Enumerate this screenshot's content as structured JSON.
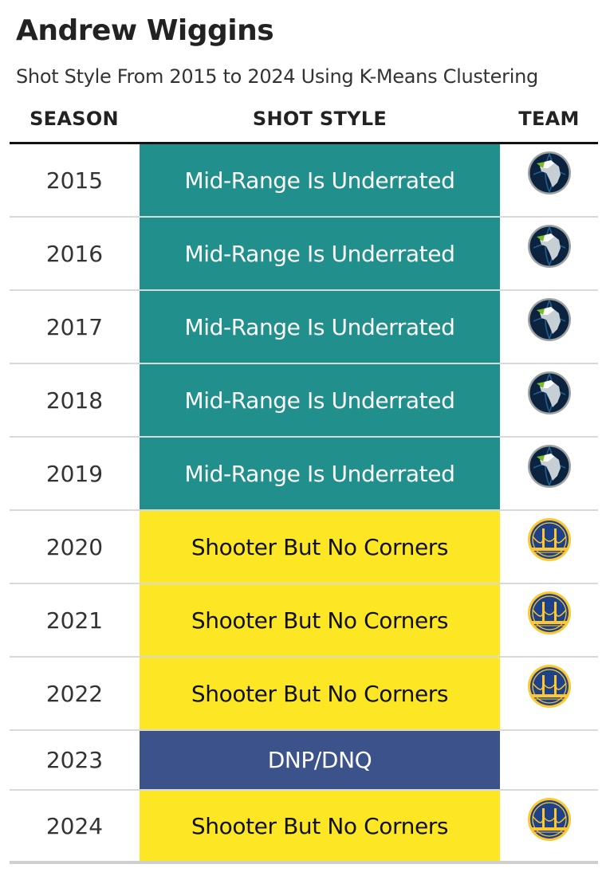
{
  "title": "Andrew Wiggins",
  "subtitle": "Shot Style From 2015 to 2024 Using K-Means Clustering",
  "columns": {
    "season": "SEASON",
    "style": "SHOT STYLE",
    "team": "TEAM"
  },
  "colors": {
    "Mid-Range Is Underrated": {
      "bg": "#21908d",
      "fg": "#ffffff"
    },
    "Shooter But No Corners": {
      "bg": "#fde725",
      "fg": "#111111"
    },
    "DNP/DNQ": {
      "bg": "#3b528b",
      "fg": "#ffffff"
    }
  },
  "chart_data": {
    "type": "table",
    "title": "Andrew Wiggins",
    "subtitle": "Shot Style From 2015 to 2024 Using K-Means Clustering",
    "rows": [
      {
        "season": "2015",
        "style": "Mid-Range Is Underrated",
        "team": "timberwolves-logo"
      },
      {
        "season": "2016",
        "style": "Mid-Range Is Underrated",
        "team": "timberwolves-logo"
      },
      {
        "season": "2017",
        "style": "Mid-Range Is Underrated",
        "team": "timberwolves-logo"
      },
      {
        "season": "2018",
        "style": "Mid-Range Is Underrated",
        "team": "timberwolves-logo"
      },
      {
        "season": "2019",
        "style": "Mid-Range Is Underrated",
        "team": "timberwolves-logo"
      },
      {
        "season": "2020",
        "style": "Shooter But No Corners",
        "team": "warriors-logo"
      },
      {
        "season": "2021",
        "style": "Shooter But No Corners",
        "team": "warriors-logo"
      },
      {
        "season": "2022",
        "style": "Shooter But No Corners",
        "team": "warriors-logo"
      },
      {
        "season": "2023",
        "style": "DNP/DNQ",
        "team": ""
      },
      {
        "season": "2024",
        "style": "Shooter But No Corners",
        "team": "warriors-logo"
      }
    ]
  }
}
